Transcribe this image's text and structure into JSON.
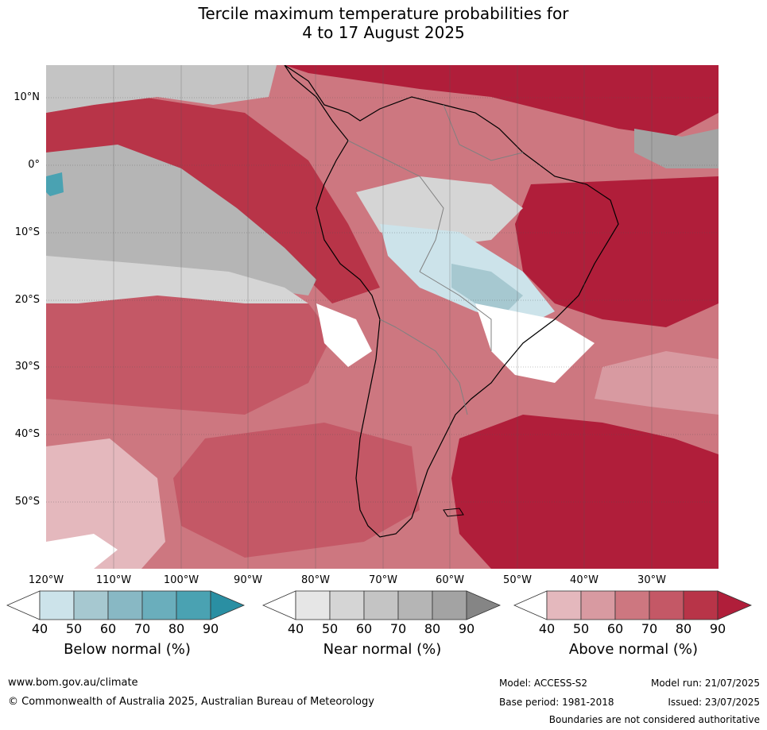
{
  "title": {
    "line1": "Tercile maximum temperature probabilities for",
    "line2": "4 to 17 August 2025"
  },
  "map": {
    "latitude_labels": [
      "10°N",
      "0°",
      "10°S",
      "20°S",
      "30°S",
      "40°S",
      "50°S"
    ],
    "longitude_labels": [
      "120°W",
      "110°W",
      "100°W",
      "90°W",
      "80°W",
      "70°W",
      "60°W",
      "50°W",
      "40°W",
      "30°W"
    ]
  },
  "legend": {
    "below": {
      "title": "Below normal (%)",
      "ticks": [
        "40",
        "50",
        "60",
        "70",
        "80",
        "90"
      ],
      "colors": [
        "#ffffff",
        "#cce3ea",
        "#a6c8d0",
        "#88b8c4",
        "#6aaebc",
        "#4aa2b2",
        "#2a8fa3"
      ]
    },
    "near": {
      "title": "Near normal (%)",
      "ticks": [
        "40",
        "50",
        "60",
        "70",
        "80",
        "90"
      ],
      "colors": [
        "#ffffff",
        "#e6e6e6",
        "#d5d5d5",
        "#c4c4c4",
        "#b5b5b5",
        "#a3a3a3",
        "#858585"
      ]
    },
    "above": {
      "title": "Above normal (%)",
      "ticks": [
        "40",
        "50",
        "60",
        "70",
        "80",
        "90"
      ],
      "colors": [
        "#ffffff",
        "#e4b8bd",
        "#d89aa1",
        "#cd7780",
        "#c45866",
        "#b83448",
        "#b01e3a"
      ]
    }
  },
  "footer": {
    "url": "www.bom.gov.au/climate",
    "copyright": "© Commonwealth of Australia 2025, Australian Bureau of Meteorology",
    "model": "Model: ACCESS-S2",
    "model_run": "Model run: 21/07/2025",
    "base_period": "Base period: 1981-2018",
    "issued": "Issued: 23/07/2025",
    "disclaimer": "Boundaries are not considered authoritative"
  }
}
